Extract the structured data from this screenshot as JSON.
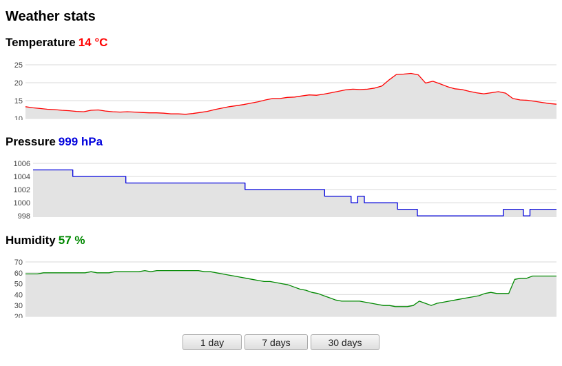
{
  "page": {
    "title": "Weather stats"
  },
  "sections": [
    {
      "key": "temperature",
      "label": "Temperature",
      "reading": "14 °C",
      "color": "#ff0000"
    },
    {
      "key": "pressure",
      "label": "Pressure",
      "reading": "999 hPa",
      "color": "#0000dd"
    },
    {
      "key": "humidity",
      "label": "Humidity",
      "reading": "57 %",
      "color": "#008800"
    }
  ],
  "buttons": [
    {
      "key": "1d",
      "label": "1 day"
    },
    {
      "key": "7d",
      "label": "7 days"
    },
    {
      "key": "30d",
      "label": "30 days"
    }
  ],
  "chart_data": [
    {
      "type": "area",
      "title": "",
      "xlabel": "",
      "ylabel": "",
      "ylim": [
        10,
        25
      ],
      "yticks": [
        "10",
        "15",
        "20",
        "25"
      ],
      "grid": true,
      "legend": "none",
      "line_color": "#ff0000",
      "fill_color": "#e3e3e3",
      "series": [
        {
          "values": [
            13.3,
            13.0,
            12.8,
            12.6,
            12.5,
            12.3,
            12.2,
            12.0,
            11.9,
            12.3,
            12.4,
            12.1,
            11.9,
            11.8,
            11.9,
            11.8,
            11.7,
            11.6,
            11.6,
            11.5,
            11.3,
            11.3,
            11.2,
            11.4,
            11.7,
            12.0,
            12.5,
            12.9,
            13.3,
            13.6,
            13.9,
            14.3,
            14.7,
            15.2,
            15.6,
            15.6,
            15.9,
            16.0,
            16.3,
            16.6,
            16.5,
            16.8,
            17.2,
            17.6,
            18.0,
            18.2,
            18.1,
            18.2,
            18.5,
            19.1,
            20.8,
            22.3,
            22.4,
            22.6,
            22.2,
            19.9,
            20.4,
            19.7,
            18.9,
            18.3,
            18.1,
            17.6,
            17.2,
            16.9,
            17.2,
            17.5,
            17.1,
            15.6,
            15.2,
            15.1,
            14.8,
            14.5,
            14.2,
            14.0
          ]
        }
      ]
    },
    {
      "type": "area",
      "title": "",
      "xlabel": "",
      "ylabel": "",
      "ylim": [
        997.8,
        1006
      ],
      "yticks": [
        "998",
        "1000",
        "1002",
        "1004",
        "1006"
      ],
      "grid": true,
      "legend": "none",
      "line_color": "#0000dd",
      "fill_color": "#e3e3e3",
      "series": [
        {
          "values": [
            1005,
            1005,
            1005,
            1005,
            1005,
            1005,
            1004,
            1004,
            1004,
            1004,
            1004,
            1004,
            1004,
            1004,
            1003,
            1003,
            1003,
            1003,
            1003,
            1003,
            1003,
            1003,
            1003,
            1003,
            1003,
            1003,
            1003,
            1003,
            1003,
            1003,
            1003,
            1003,
            1002,
            1002,
            1002,
            1002,
            1002,
            1002,
            1002,
            1002,
            1002,
            1002,
            1002,
            1002,
            1001,
            1001,
            1001,
            1001,
            1000,
            1001,
            1000,
            1000,
            1000,
            1000,
            1000,
            999,
            999,
            999,
            998,
            998,
            998,
            998,
            998,
            998,
            998,
            998,
            998,
            998,
            998,
            998,
            998,
            999,
            999,
            999,
            998,
            999,
            999,
            999,
            999,
            999
          ]
        }
      ]
    },
    {
      "type": "area",
      "title": "",
      "xlabel": "",
      "ylabel": "",
      "ylim": [
        20,
        70
      ],
      "yticks": [
        "20",
        "30",
        "40",
        "50",
        "60",
        "70"
      ],
      "grid": true,
      "legend": "none",
      "line_color": "#008800",
      "fill_color": "#e3e3e3",
      "series": [
        {
          "values": [
            59,
            59,
            59,
            60,
            60,
            60,
            60,
            60,
            60,
            60,
            60,
            61,
            60,
            60,
            60,
            61,
            61,
            61,
            61,
            61,
            62,
            61,
            62,
            62,
            62,
            62,
            62,
            62,
            62,
            62,
            61,
            61,
            60,
            59,
            58,
            57,
            56,
            55,
            54,
            53,
            52,
            52,
            51,
            50,
            49,
            47,
            45,
            44,
            42,
            41,
            39,
            37,
            35,
            34,
            34,
            34,
            34,
            33,
            32,
            31,
            30,
            30,
            29,
            29,
            29,
            30,
            34,
            32,
            30,
            32,
            33,
            34,
            35,
            36,
            37,
            38,
            39,
            41,
            42,
            41,
            41,
            41,
            54,
            55,
            55,
            57,
            57,
            57,
            57,
            57
          ]
        }
      ]
    }
  ]
}
